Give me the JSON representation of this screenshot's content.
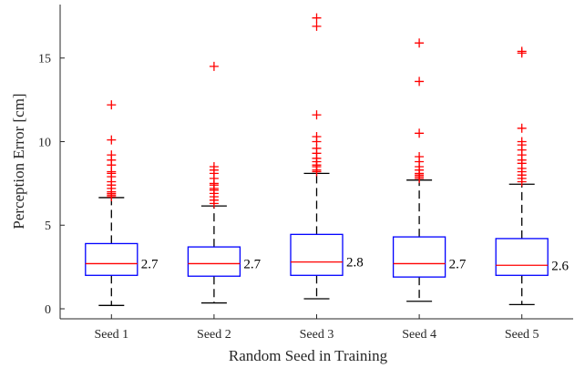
{
  "chart_data": {
    "type": "boxplot",
    "title": "",
    "xlabel": "Random Seed in Training",
    "ylabel": "Perception Error [cm]",
    "ylim": [
      -0.6,
      18.2
    ],
    "yticks": [
      0,
      5,
      10,
      15
    ],
    "grid": false,
    "categories": [
      "Seed 1",
      "Seed 2",
      "Seed 3",
      "Seed 4",
      "Seed 5"
    ],
    "boxes": [
      {
        "label": "Seed 1",
        "whisker_low": 0.2,
        "q1": 2.0,
        "median": 2.7,
        "q3": 3.9,
        "whisker_high": 6.65,
        "median_label": "2.7",
        "outliers": [
          6.7,
          6.8,
          6.9,
          7.0,
          7.2,
          7.4,
          7.6,
          7.9,
          8.1,
          8.2,
          8.6,
          8.9,
          9.2,
          10.1,
          12.2
        ]
      },
      {
        "label": "Seed 2",
        "whisker_low": 0.35,
        "q1": 1.95,
        "median": 2.7,
        "q3": 3.7,
        "whisker_high": 6.15,
        "median_label": "2.7",
        "outliers": [
          6.3,
          6.5,
          6.7,
          6.9,
          7.1,
          7.2,
          7.4,
          7.5,
          7.8,
          8.1,
          8.3,
          8.5,
          14.5
        ]
      },
      {
        "label": "Seed 3",
        "whisker_low": 0.6,
        "q1": 2.0,
        "median": 2.8,
        "q3": 4.45,
        "whisker_high": 8.1,
        "median_label": "2.8",
        "outliers": [
          8.2,
          8.3,
          8.5,
          8.6,
          8.8,
          9.0,
          9.3,
          9.6,
          10.0,
          10.3,
          11.6,
          16.9,
          17.4
        ]
      },
      {
        "label": "Seed 4",
        "whisker_low": 0.45,
        "q1": 1.9,
        "median": 2.7,
        "q3": 4.3,
        "whisker_high": 7.7,
        "median_label": "2.7",
        "outliers": [
          7.8,
          7.9,
          8.0,
          8.1,
          8.3,
          8.5,
          8.8,
          9.1,
          10.5,
          13.6,
          15.9
        ]
      },
      {
        "label": "Seed 5",
        "whisker_low": 0.25,
        "q1": 2.0,
        "median": 2.6,
        "q3": 4.2,
        "whisker_high": 7.45,
        "median_label": "2.6",
        "outliers": [
          7.6,
          7.8,
          8.0,
          8.2,
          8.4,
          8.7,
          8.9,
          9.2,
          9.5,
          9.8,
          10.0,
          10.8,
          15.3,
          15.4
        ]
      }
    ],
    "colors": {
      "box": "#0000ff",
      "median": "#ff0000",
      "outlier": "#ff0000",
      "whisker": "#000000",
      "axis": "#262626"
    }
  }
}
